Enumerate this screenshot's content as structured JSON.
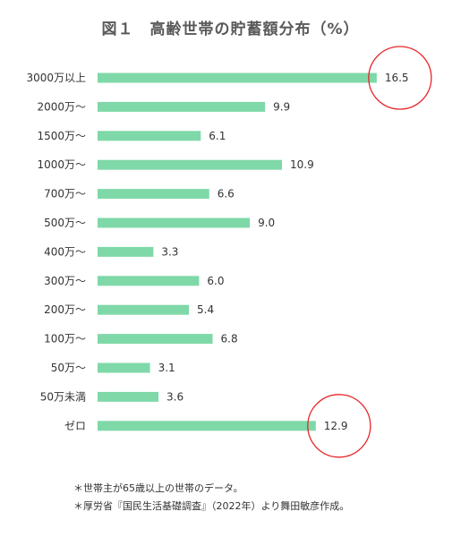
{
  "chart_data": {
    "type": "bar",
    "orientation": "horizontal",
    "title": "図１　高齢世帯の貯蓄額分布（%）",
    "categories": [
      "3000万以上",
      "2000万〜",
      "1500万〜",
      "1000万〜",
      "700万〜",
      "500万〜",
      "400万〜",
      "300万〜",
      "200万〜",
      "100万〜",
      "50万〜",
      "50万未満",
      "ゼロ"
    ],
    "values": [
      16.5,
      9.9,
      6.1,
      10.9,
      6.6,
      9.0,
      3.3,
      6.0,
      5.4,
      6.8,
      3.1,
      3.6,
      12.9
    ],
    "value_labels": [
      "16.5",
      "9.9",
      "6.1",
      "10.9",
      "6.6",
      "9.0",
      "3.3",
      "6.0",
      "5.4",
      "6.8",
      "3.1",
      "3.6",
      "12.9"
    ],
    "highlighted": [
      "3000万以上",
      "ゼロ"
    ],
    "xlim": [
      0,
      18
    ],
    "grid": false,
    "bar_color": "#7fd8a8",
    "highlight_color": "#e8262a"
  },
  "notes": [
    "＊世帯主が65歳以上の世帯のデータ。",
    "＊厚労省『国民生活基礎調査』（2022年）より舞田敏彦作成。"
  ]
}
